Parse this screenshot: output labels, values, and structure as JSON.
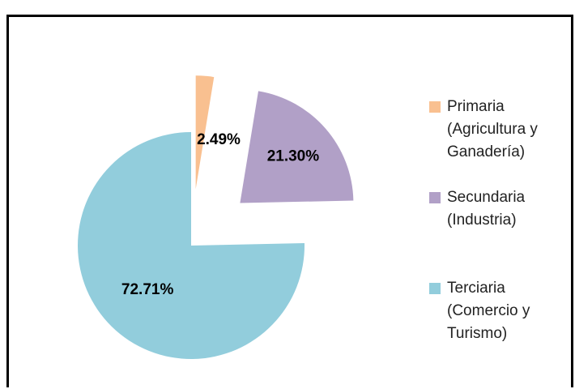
{
  "chart_data": {
    "type": "pie",
    "categories": [
      "Primaria (Agricultura y Ganadería)",
      "Secundaria (Industria)",
      "Terciaria (Comercio y Turismo)"
    ],
    "values": [
      2.49,
      21.3,
      72.71
    ],
    "value_labels": [
      "2.49%",
      "21.30%",
      "72.71%"
    ],
    "colors": [
      "#f9c090",
      "#b1a0c7",
      "#92cddc"
    ],
    "legend": "right"
  }
}
